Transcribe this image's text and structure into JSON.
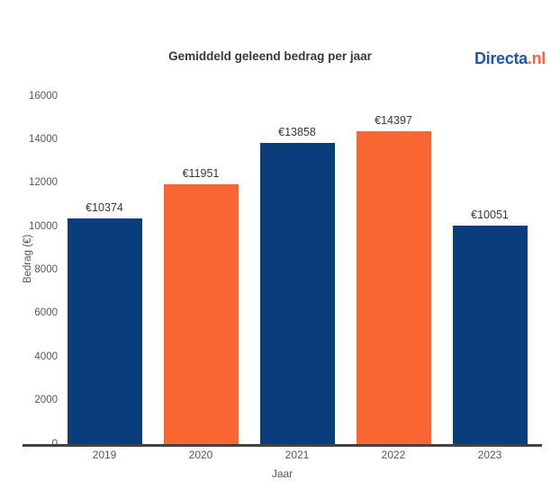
{
  "header": {
    "logo": {
      "primary": "Directa",
      "suffix": ".nl"
    }
  },
  "chart_data": {
    "type": "bar",
    "title": "Gemiddeld geleend bedrag per jaar",
    "categories": [
      "2019",
      "2020",
      "2021",
      "2022",
      "2023"
    ],
    "values": [
      10374,
      11951,
      13858,
      14397,
      10051
    ],
    "bar_labels": [
      "€10374",
      "€11951",
      "€13858",
      "€14397",
      "€10051"
    ],
    "bar_colors": [
      "#0a3d7c",
      "#fa6632",
      "#0a3d7c",
      "#fa6632",
      "#0a3d7c"
    ],
    "xlabel": "Jaar",
    "ylabel": "Bedrag (€)",
    "ylim": [
      0,
      16000
    ],
    "yticks": [
      0,
      2000,
      4000,
      6000,
      8000,
      10000,
      12000,
      14000,
      16000
    ],
    "grid": false,
    "legend_position": "none"
  },
  "colors": {
    "bar_blue": "#0a3d7c",
    "bar_orange": "#fa6632",
    "logo_blue": "#2058a8",
    "logo_orange": "#f2683c",
    "axis_line": "#424242",
    "text_dark": "#37373c",
    "text_gray": "#55565a"
  }
}
